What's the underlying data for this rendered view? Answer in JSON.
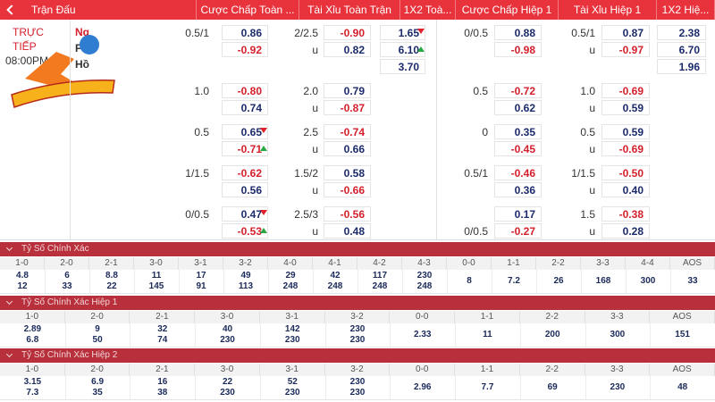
{
  "header": {
    "columns": [
      "Trận Đấu",
      "Cược Chấp Toàn ...",
      "Tài Xỉu Toàn Trận",
      "1X2 Toà...",
      "Cược Chấp Hiệp 1",
      "Tài Xỉu Hiệp 1",
      "1X2 Hiệ..."
    ]
  },
  "match": {
    "status": [
      "TRỰC",
      "TIẾP"
    ],
    "time": "08:00PM",
    "teams": [
      "Ng",
      "Phi",
      "Hồ"
    ]
  },
  "rows": [
    {
      "hc_ft": {
        "labels": [
          "0.5/1",
          null
        ],
        "odds": [
          "0.86",
          "-0.92"
        ]
      },
      "ou_ft": {
        "labels": [
          "2/2.5",
          "u"
        ],
        "odds": [
          "-0.90",
          "0.82"
        ]
      },
      "x12_ft": {
        "odds": [
          "1.65",
          "6.10",
          "3.70"
        ],
        "trends": [
          "down",
          "up",
          null
        ]
      },
      "hc_h1": {
        "labels": [
          "0/0.5",
          null
        ],
        "odds": [
          "0.88",
          "-0.98"
        ]
      },
      "ou_h1": {
        "labels": [
          "0.5/1",
          "u"
        ],
        "odds": [
          "0.87",
          "-0.97"
        ]
      },
      "x12_h1": {
        "odds": [
          "2.38",
          "6.70",
          "1.96"
        ]
      }
    },
    {
      "hc_ft": {
        "labels": [
          "1.0",
          null
        ],
        "odds": [
          "-0.80",
          "0.74"
        ]
      },
      "ou_ft": {
        "labels": [
          "2.0",
          "u"
        ],
        "odds": [
          "0.79",
          "-0.87"
        ]
      },
      "hc_h1": {
        "labels": [
          "0.5",
          null
        ],
        "odds": [
          "-0.72",
          "0.62"
        ]
      },
      "ou_h1": {
        "labels": [
          "1.0",
          "u"
        ],
        "odds": [
          "-0.69",
          "0.59"
        ]
      }
    },
    {
      "hc_ft": {
        "labels": [
          "0.5",
          null
        ],
        "odds": [
          "0.65",
          "-0.71"
        ],
        "trends": [
          "down",
          "up"
        ]
      },
      "ou_ft": {
        "labels": [
          "2.5",
          "u"
        ],
        "odds": [
          "-0.74",
          "0.66"
        ]
      },
      "hc_h1": {
        "labels": [
          "0",
          null
        ],
        "odds": [
          "0.35",
          "-0.45"
        ]
      },
      "ou_h1": {
        "labels": [
          "0.5",
          "u"
        ],
        "odds": [
          "0.59",
          "-0.69"
        ]
      }
    },
    {
      "hc_ft": {
        "labels": [
          "1/1.5",
          null
        ],
        "odds": [
          "-0.62",
          "0.56"
        ]
      },
      "ou_ft": {
        "labels": [
          "1.5/2",
          "u"
        ],
        "odds": [
          "0.58",
          "-0.66"
        ]
      },
      "hc_h1": {
        "labels": [
          "0.5/1",
          null
        ],
        "odds": [
          "-0.46",
          "0.36"
        ]
      },
      "ou_h1": {
        "labels": [
          "1/1.5",
          "u"
        ],
        "odds": [
          "-0.50",
          "0.40"
        ]
      }
    },
    {
      "hc_ft": {
        "labels": [
          "0/0.5",
          null
        ],
        "odds": [
          "0.47",
          "-0.53"
        ],
        "trends": [
          "down",
          "up"
        ]
      },
      "ou_ft": {
        "labels": [
          "2.5/3",
          "u"
        ],
        "odds": [
          "-0.56",
          "0.48"
        ]
      },
      "hc_h1": {
        "labels": [
          null,
          "0/0.5"
        ],
        "odds": [
          "0.17",
          "-0.27"
        ]
      },
      "ou_h1": {
        "labels": [
          "1.5",
          "u"
        ],
        "odds": [
          "-0.38",
          "0.28"
        ]
      }
    }
  ],
  "sections": [
    {
      "title": "Tỷ Số Chính Xác",
      "columns": [
        {
          "label": "1-0",
          "odds": [
            "4.8",
            "12"
          ]
        },
        {
          "label": "2-0",
          "odds": [
            "6",
            "33"
          ]
        },
        {
          "label": "2-1",
          "odds": [
            "8.8",
            "22"
          ]
        },
        {
          "label": "3-0",
          "odds": [
            "11",
            "145"
          ]
        },
        {
          "label": "3-1",
          "odds": [
            "17",
            "91"
          ]
        },
        {
          "label": "3-2",
          "odds": [
            "49",
            "113"
          ]
        },
        {
          "label": "4-0",
          "odds": [
            "29",
            "248"
          ]
        },
        {
          "label": "4-1",
          "odds": [
            "42",
            "248"
          ]
        },
        {
          "label": "4-2",
          "odds": [
            "117",
            "248"
          ]
        },
        {
          "label": "4-3",
          "odds": [
            "230",
            "248"
          ]
        },
        {
          "label": "0-0",
          "odds": [
            "8"
          ]
        },
        {
          "label": "1-1",
          "odds": [
            "7.2"
          ]
        },
        {
          "label": "2-2",
          "odds": [
            "26"
          ]
        },
        {
          "label": "3-3",
          "odds": [
            "168"
          ]
        },
        {
          "label": "4-4",
          "odds": [
            "300"
          ]
        },
        {
          "label": "AOS",
          "odds": [
            "33"
          ]
        }
      ]
    },
    {
      "title": "Tỷ Số Chính Xác Hiệp 1",
      "columns": [
        {
          "label": "1-0",
          "odds": [
            "2.89",
            "6.8"
          ]
        },
        {
          "label": "2-0",
          "odds": [
            "9",
            "50"
          ]
        },
        {
          "label": "2-1",
          "odds": [
            "32",
            "74"
          ]
        },
        {
          "label": "3-0",
          "odds": [
            "40",
            "230"
          ]
        },
        {
          "label": "3-1",
          "odds": [
            "142",
            "230"
          ]
        },
        {
          "label": "3-2",
          "odds": [
            "230",
            "230"
          ]
        },
        {
          "label": "0-0",
          "odds": [
            "2.33"
          ]
        },
        {
          "label": "1-1",
          "odds": [
            "11"
          ]
        },
        {
          "label": "2-2",
          "odds": [
            "200"
          ]
        },
        {
          "label": "3-3",
          "odds": [
            "300"
          ]
        },
        {
          "label": "AOS",
          "odds": [
            "151"
          ]
        }
      ]
    },
    {
      "title": "Tỷ Số Chính Xác Hiệp 2",
      "columns": [
        {
          "label": "1-0",
          "odds": [
            "3.15",
            "7.3"
          ]
        },
        {
          "label": "2-0",
          "odds": [
            "6.9",
            "35"
          ]
        },
        {
          "label": "2-1",
          "odds": [
            "16",
            "38"
          ]
        },
        {
          "label": "3-0",
          "odds": [
            "22",
            "230"
          ]
        },
        {
          "label": "3-1",
          "odds": [
            "52",
            "230"
          ]
        },
        {
          "label": "3-2",
          "odds": [
            "230",
            "230"
          ]
        },
        {
          "label": "0-0",
          "odds": [
            "2.96"
          ]
        },
        {
          "label": "1-1",
          "odds": [
            "7.7"
          ]
        },
        {
          "label": "2-2",
          "odds": [
            "69"
          ]
        },
        {
          "label": "3-3",
          "odds": [
            "230"
          ]
        },
        {
          "label": "AOS",
          "odds": [
            "48"
          ]
        }
      ]
    }
  ]
}
